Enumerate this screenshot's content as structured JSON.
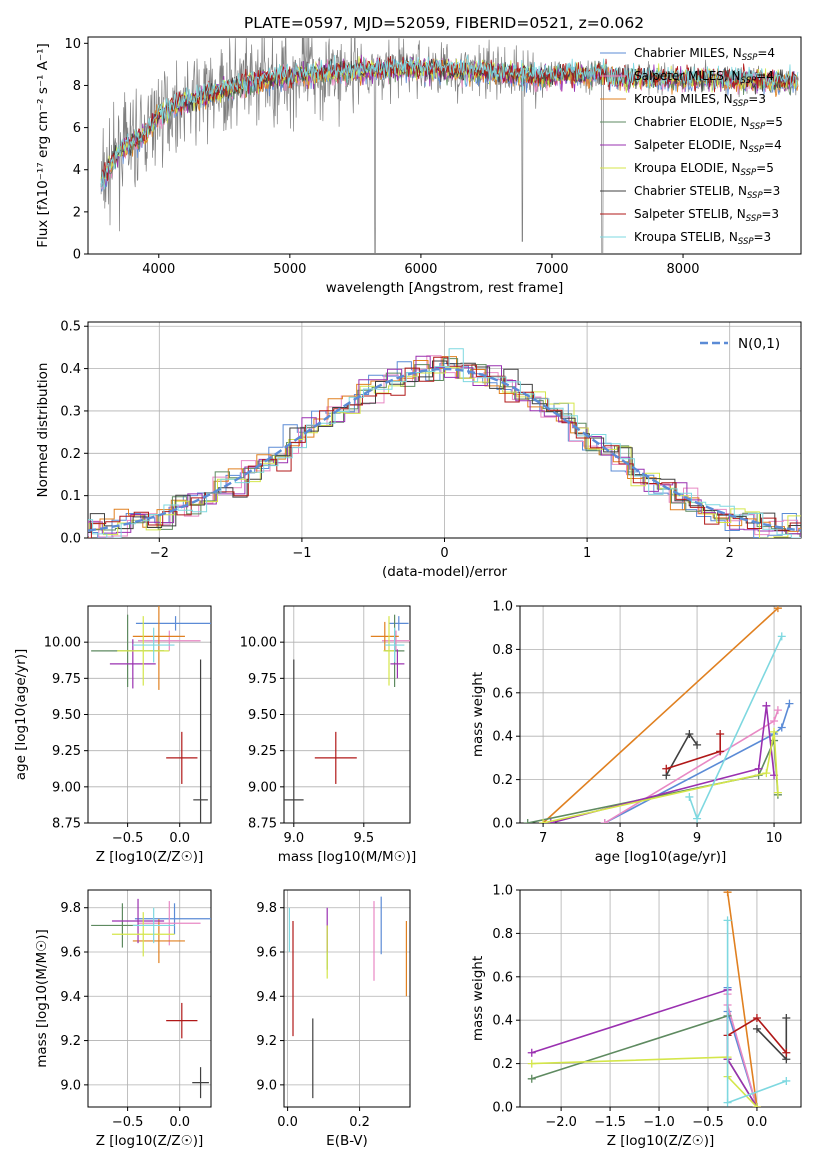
{
  "title": "PLATE=0597, MJD=52059, FIBERID=0521, z=0.062",
  "chart_data": [
    {
      "id": "spectrum",
      "type": "line",
      "xlabel": "wavelength [Angstrom, rest frame]",
      "ylabel": "Flux [fλ10⁻¹⁷ erg cm⁻² s⁻¹ A⁻¹]",
      "xlim": [
        3460,
        8900
      ],
      "ylim": [
        0,
        10.3
      ],
      "xticks": [
        4000,
        5000,
        6000,
        7000,
        8000
      ],
      "yticks": [
        0,
        2,
        4,
        6,
        8,
        10
      ],
      "data_line_color": "#808080",
      "model_continuum": {
        "x": [
          3550,
          3620,
          3700,
          3800,
          3900,
          4000,
          4100,
          4300,
          4500,
          4800,
          5000,
          5200,
          5500,
          5800,
          6000,
          6300,
          6600,
          6900,
          7100,
          7300,
          7400,
          7500,
          7700,
          8000,
          8300,
          8600,
          8900
        ],
        "y": [
          3.2,
          4.0,
          4.9,
          5.3,
          5.7,
          6.6,
          7.0,
          7.4,
          7.8,
          8.2,
          8.5,
          8.6,
          8.7,
          8.8,
          8.8,
          8.7,
          8.6,
          8.4,
          8.5,
          8.5,
          8.6,
          8.3,
          8.4,
          8.3,
          8.3,
          8.2,
          8.2
        ]
      },
      "legend": [
        {
          "label": "Chabrier MILES, N",
          "sub": "SSP",
          "suffix": "=4",
          "color": "#5b8bd6"
        },
        {
          "label": "Salpeter MILES, N",
          "sub": "SSP",
          "suffix": "=4",
          "color": "#e889c4"
        },
        {
          "label": "Kroupa MILES, N",
          "sub": "SSP",
          "suffix": "=3",
          "color": "#e08020"
        },
        {
          "label": "Chabrier ELODIE, N",
          "sub": "SSP",
          "suffix": "=5",
          "color": "#5e8a60"
        },
        {
          "label": "Salpeter ELODIE, N",
          "sub": "SSP",
          "suffix": "=4",
          "color": "#9a30b0"
        },
        {
          "label": "Kroupa ELODIE, N",
          "sub": "SSP",
          "suffix": "=5",
          "color": "#d4e64a"
        },
        {
          "label": "Chabrier STELIB, N",
          "sub": "SSP",
          "suffix": "=3",
          "color": "#404040"
        },
        {
          "label": "Salpeter STELIB, N",
          "sub": "SSP",
          "suffix": "=3",
          "color": "#b01818"
        },
        {
          "label": "Kroupa STELIB, N",
          "sub": "SSP",
          "suffix": "=3",
          "color": "#7ed8e0"
        }
      ]
    },
    {
      "id": "residuals",
      "type": "line",
      "xlabel": "(data-model)/error",
      "ylabel": "Normed distribution",
      "xlim": [
        -2.5,
        2.5
      ],
      "ylim": [
        0,
        0.51
      ],
      "xticks": [
        -2,
        -1,
        0,
        1,
        2
      ],
      "yticks": [
        0.0,
        0.1,
        0.2,
        0.3,
        0.4,
        0.5
      ],
      "legend_label": "N(0,1)",
      "legend_color": "#5b8bd6"
    },
    {
      "id": "age-vs-Z",
      "type": "scatter",
      "xlabel": "Z [log10(Z/Z☉)]",
      "ylabel": "age  [log10(age/yr)]",
      "xlim": [
        -0.88,
        0.3
      ],
      "ylim": [
        8.75,
        10.25
      ],
      "xticks": [
        -0.5,
        0.0
      ],
      "yticks": [
        8.75,
        9.0,
        9.25,
        9.5,
        9.75,
        10.0
      ],
      "points": [
        {
          "color": "#5b8bd6",
          "x": -0.04,
          "y": 10.13,
          "xerr": 0.38,
          "yerr": 0.05
        },
        {
          "color": "#e889c4",
          "x": -0.1,
          "y": 10.01,
          "xerr": 0.3,
          "yerr": 0.07
        },
        {
          "color": "#e08020",
          "x": -0.2,
          "y": 10.04,
          "xerr": 0.25,
          "yerr": 0.37
        },
        {
          "color": "#5e8a60",
          "x": -0.5,
          "y": 9.94,
          "xerr": 0.35,
          "yerr": 0.25
        },
        {
          "color": "#9a30b0",
          "x": -0.45,
          "y": 9.85,
          "xerr": 0.22,
          "yerr": 0.17
        },
        {
          "color": "#d4e64a",
          "x": -0.35,
          "y": 9.94,
          "xerr": 0.25,
          "yerr": 0.24
        },
        {
          "color": "#404040",
          "x": 0.2,
          "y": 8.91,
          "xerr": 0.07,
          "yerr": 0.97
        },
        {
          "color": "#b01818",
          "x": 0.02,
          "y": 9.2,
          "xerr": 0.15,
          "yerr": 0.18
        },
        {
          "color": "#7ed8e0",
          "x": -0.25,
          "y": 9.98,
          "xerr": 0.2,
          "yerr": 0.12
        }
      ]
    },
    {
      "id": "age-vs-mass",
      "type": "scatter",
      "xlabel": "mass [log10(M/M☉)]",
      "ylabel": "",
      "xlim": [
        8.93,
        9.83
      ],
      "ylim": [
        8.75,
        10.25
      ],
      "xticks": [
        9.0,
        9.5
      ],
      "yticks": [
        8.75,
        9.0,
        9.25,
        9.5,
        9.75,
        10.0
      ],
      "points": [
        {
          "color": "#5b8bd6",
          "x": 9.75,
          "y": 10.13,
          "xerr": 0.07,
          "yerr": 0.05
        },
        {
          "color": "#e889c4",
          "x": 9.73,
          "y": 10.01,
          "xerr": 0.1,
          "yerr": 0.07
        },
        {
          "color": "#e08020",
          "x": 9.65,
          "y": 10.04,
          "xerr": 0.1,
          "yerr": 0.1
        },
        {
          "color": "#5e8a60",
          "x": 9.72,
          "y": 9.94,
          "xerr": 0.07,
          "yerr": 0.25
        },
        {
          "color": "#9a30b0",
          "x": 9.74,
          "y": 9.85,
          "xerr": 0.05,
          "yerr": 0.1
        },
        {
          "color": "#d4e64a",
          "x": 9.68,
          "y": 9.94,
          "xerr": 0.04,
          "yerr": 0.24
        },
        {
          "color": "#404040",
          "x": 9.0,
          "y": 8.91,
          "xerr": 0.07,
          "yerr": 0.97
        },
        {
          "color": "#b01818",
          "x": 9.3,
          "y": 9.2,
          "xerr": 0.15,
          "yerr": 0.18
        },
        {
          "color": "#7ed8e0",
          "x": 9.72,
          "y": 9.98,
          "xerr": 0.07,
          "yerr": 0.12
        }
      ]
    },
    {
      "id": "weight-vs-age",
      "type": "line",
      "xlabel": "age  [log10(age/yr)]",
      "ylabel": "mass weight",
      "xlim": [
        6.7,
        10.35
      ],
      "ylim": [
        0,
        1.0
      ],
      "xticks": [
        7,
        8,
        9,
        10
      ],
      "yticks": [
        0.0,
        0.2,
        0.4,
        0.6,
        0.8,
        1.0
      ],
      "series": [
        {
          "color": "#5b8bd6",
          "x": [
            7.8,
            10.0,
            10.1,
            10.2
          ],
          "y": [
            0.0,
            0.41,
            0.44,
            0.55
          ]
        },
        {
          "color": "#e889c4",
          "x": [
            7.8,
            10.0,
            10.05
          ],
          "y": [
            0.0,
            0.47,
            0.52
          ]
        },
        {
          "color": "#e08020",
          "x": [
            7.0,
            10.05
          ],
          "y": [
            0.0,
            0.99
          ]
        },
        {
          "color": "#5e8a60",
          "x": [
            6.8,
            9.8,
            10.0,
            10.05
          ],
          "y": [
            0.0,
            0.22,
            0.38,
            0.13
          ]
        },
        {
          "color": "#9a30b0",
          "x": [
            7.1,
            9.8,
            9.9,
            10.0
          ],
          "y": [
            0.0,
            0.25,
            0.54,
            0.22
          ]
        },
        {
          "color": "#d4e64a",
          "x": [
            7.0,
            9.9,
            10.0,
            10.05
          ],
          "y": [
            0.0,
            0.23,
            0.42,
            0.14
          ]
        },
        {
          "color": "#404040",
          "x": [
            8.6,
            8.9,
            9.0
          ],
          "y": [
            0.22,
            0.41,
            0.36
          ]
        },
        {
          "color": "#b01818",
          "x": [
            8.6,
            9.3,
            9.3
          ],
          "y": [
            0.25,
            0.33,
            0.41
          ]
        },
        {
          "color": "#7ed8e0",
          "x": [
            8.9,
            9.0,
            10.1
          ],
          "y": [
            0.12,
            0.02,
            0.86
          ]
        }
      ]
    },
    {
      "id": "mass-vs-Z",
      "type": "scatter",
      "xlabel": "Z [log10(Z/Z☉)]",
      "ylabel": "mass [log10(M/M☉)]",
      "xlim": [
        -0.88,
        0.3
      ],
      "ylim": [
        8.9,
        9.88
      ],
      "xticks": [
        -0.5,
        0.0
      ],
      "yticks": [
        9.0,
        9.2,
        9.4,
        9.6,
        9.8
      ],
      "points": [
        {
          "color": "#5b8bd6",
          "x": -0.05,
          "y": 9.75,
          "xerr": 0.38,
          "yerr": 0.07
        },
        {
          "color": "#e889c4",
          "x": -0.1,
          "y": 9.73,
          "xerr": 0.3,
          "yerr": 0.1
        },
        {
          "color": "#e08020",
          "x": -0.2,
          "y": 9.65,
          "xerr": 0.25,
          "yerr": 0.1
        },
        {
          "color": "#5e8a60",
          "x": -0.55,
          "y": 9.72,
          "xerr": 0.3,
          "yerr": 0.1
        },
        {
          "color": "#9a30b0",
          "x": -0.4,
          "y": 9.74,
          "xerr": 0.25,
          "yerr": 0.1
        },
        {
          "color": "#d4e64a",
          "x": -0.35,
          "y": 9.68,
          "xerr": 0.3,
          "yerr": 0.1
        },
        {
          "color": "#404040",
          "x": 0.2,
          "y": 9.01,
          "xerr": 0.08,
          "yerr": 0.07
        },
        {
          "color": "#b01818",
          "x": 0.02,
          "y": 9.29,
          "xerr": 0.15,
          "yerr": 0.08
        },
        {
          "color": "#7ed8e0",
          "x": -0.25,
          "y": 9.72,
          "xerr": 0.2,
          "yerr": 0.08
        }
      ]
    },
    {
      "id": "mass-vs-EBV",
      "type": "scatter",
      "xlabel": "E(B-V)",
      "ylabel": "",
      "xlim": [
        -0.01,
        0.34
      ],
      "ylim": [
        8.9,
        9.88
      ],
      "xticks": [
        0.0,
        0.2
      ],
      "yticks": [
        9.0,
        9.2,
        9.4,
        9.6,
        9.8
      ],
      "points": [
        {
          "color": "#5b8bd6",
          "x": 0.26,
          "y": 9.72,
          "xerr": 0,
          "yerr": 0.13
        },
        {
          "color": "#e889c4",
          "x": 0.24,
          "y": 9.65,
          "xerr": 0,
          "yerr": 0.18
        },
        {
          "color": "#e08020",
          "x": 0.33,
          "y": 9.57,
          "xerr": 0,
          "yerr": 0.17
        },
        {
          "color": "#5e8a60",
          "x": 0.11,
          "y": 9.62,
          "xerr": 0,
          "yerr": 0.1
        },
        {
          "color": "#9a30b0",
          "x": 0.11,
          "y": 9.7,
          "xerr": 0,
          "yerr": 0.1
        },
        {
          "color": "#d4e64a",
          "x": 0.11,
          "y": 9.6,
          "xerr": 0,
          "yerr": 0.12
        },
        {
          "color": "#404040",
          "x": 0.07,
          "y": 9.12,
          "xerr": 0,
          "yerr": 0.18
        },
        {
          "color": "#b01818",
          "x": 0.015,
          "y": 9.48,
          "xerr": 0,
          "yerr": 0.26
        },
        {
          "color": "#7ed8e0",
          "x": 0.005,
          "y": 9.7,
          "xerr": 0,
          "yerr": 0.1
        }
      ]
    },
    {
      "id": "weight-vs-Z",
      "type": "line",
      "xlabel": "Z [log10(Z/Z☉)]",
      "ylabel": "mass weight",
      "xlim": [
        -2.42,
        0.45
      ],
      "ylim": [
        0,
        1.0
      ],
      "xticks": [
        -2.0,
        -1.5,
        -1.0,
        -0.5,
        0.0
      ],
      "yticks": [
        0.0,
        0.2,
        0.4,
        0.6,
        0.8,
        1.0
      ],
      "series": [
        {
          "color": "#5b8bd6",
          "x": [
            -0.3,
            -0.3,
            0.0
          ],
          "y": [
            0.55,
            0.44,
            0.0
          ]
        },
        {
          "color": "#e889c4",
          "x": [
            -0.3,
            -0.3,
            0.0
          ],
          "y": [
            0.52,
            0.47,
            0.0
          ]
        },
        {
          "color": "#e08020",
          "x": [
            -0.3,
            0.0
          ],
          "y": [
            0.99,
            0.0
          ]
        },
        {
          "color": "#5e8a60",
          "x": [
            -2.3,
            -0.3,
            -0.3,
            0.0
          ],
          "y": [
            0.13,
            0.42,
            0.22,
            0.0
          ]
        },
        {
          "color": "#9a30b0",
          "x": [
            -2.3,
            -0.3,
            -0.3,
            0.0
          ],
          "y": [
            0.25,
            0.54,
            0.22,
            0.0
          ]
        },
        {
          "color": "#d4e64a",
          "x": [
            -2.3,
            -0.3,
            -0.3,
            0.0
          ],
          "y": [
            0.2,
            0.23,
            0.14,
            0.0
          ]
        },
        {
          "color": "#404040",
          "x": [
            0.0,
            0.3,
            0.3
          ],
          "y": [
            0.36,
            0.22,
            0.41
          ]
        },
        {
          "color": "#b01818",
          "x": [
            -0.3,
            0.0,
            0.3
          ],
          "y": [
            0.33,
            0.41,
            0.25
          ]
        },
        {
          "color": "#7ed8e0",
          "x": [
            -0.3,
            -0.3,
            0.3
          ],
          "y": [
            0.86,
            0.02,
            0.12
          ]
        }
      ]
    }
  ]
}
